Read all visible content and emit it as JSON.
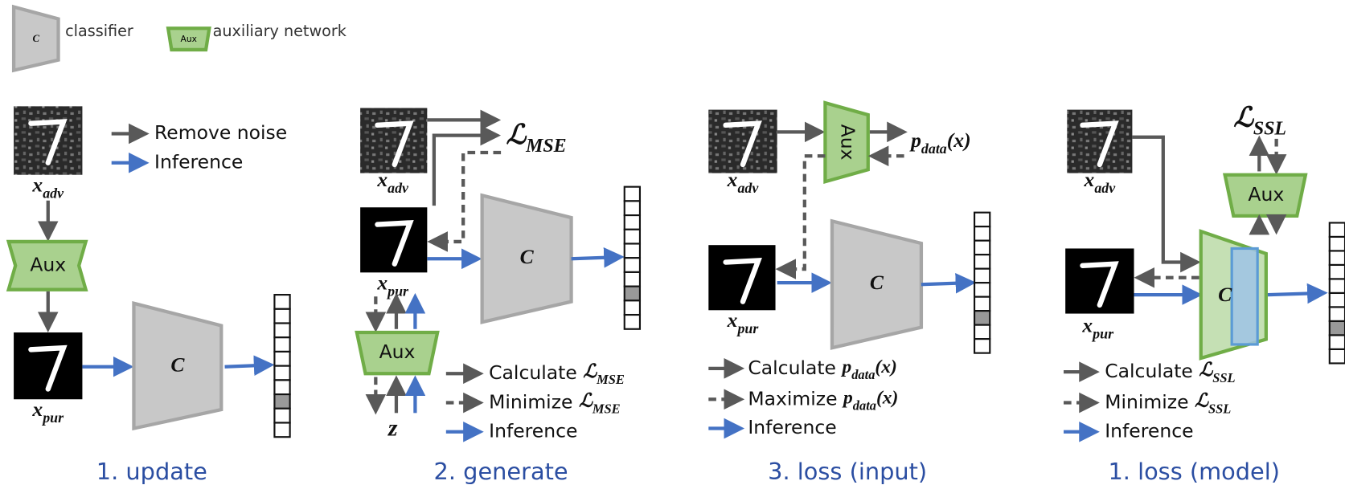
{
  "legend": {
    "classifier_icon": "C",
    "classifier": "classifier",
    "aux_icon": "Aux",
    "aux": "auxiliary network"
  },
  "panels": [
    {
      "x_adv": {
        "symbol": "x",
        "sub": "adv"
      },
      "aux": "Aux",
      "x_pur": {
        "symbol": "x",
        "sub": "pur"
      },
      "classifier": "C",
      "legend": [
        "Remove noise",
        "Inference"
      ],
      "caption": "1. update"
    },
    {
      "loss": {
        "symbol": "ℒ",
        "sub": "MSE"
      },
      "x_adv": {
        "symbol": "x",
        "sub": "adv"
      },
      "x_pur": {
        "symbol": "x",
        "sub": "pur"
      },
      "classifier": "C",
      "aux": "Aux",
      "z": "z",
      "legend": [
        {
          "text": "Calculate",
          "symbol": "ℒ",
          "sub": "MSE"
        },
        {
          "text": "Minimize",
          "symbol": "ℒ",
          "sub": "MSE"
        },
        {
          "text": "Inference"
        }
      ],
      "caption": "2. generate"
    },
    {
      "x_adv": {
        "symbol": "x",
        "sub": "adv"
      },
      "aux": "Aux",
      "output": {
        "symbol": "p",
        "sub": "data",
        "suffix": "(x)"
      },
      "x_pur": {
        "symbol": "x",
        "sub": "pur"
      },
      "classifier": "C",
      "legend": [
        {
          "text": "Calculate",
          "symbol": "p",
          "sub": "data",
          "suffix": "(x)"
        },
        {
          "text": "Maximize",
          "symbol": "p",
          "sub": "data",
          "suffix": "(x)"
        },
        {
          "text": "Inference"
        }
      ],
      "caption": "3. loss (input)"
    },
    {
      "loss": {
        "symbol": "ℒ",
        "sub": "SSL"
      },
      "x_adv": {
        "symbol": "x",
        "sub": "adv"
      },
      "aux": "Aux",
      "x_pur": {
        "symbol": "x",
        "sub": "pur"
      },
      "classifier": "C",
      "legend": [
        {
          "text": "Calculate",
          "symbol": "ℒ",
          "sub": "SSL"
        },
        {
          "text": "Minimize",
          "symbol": "ℒ",
          "sub": "SSL"
        },
        {
          "text": "Inference"
        }
      ],
      "caption": "1. loss (model)"
    }
  ]
}
